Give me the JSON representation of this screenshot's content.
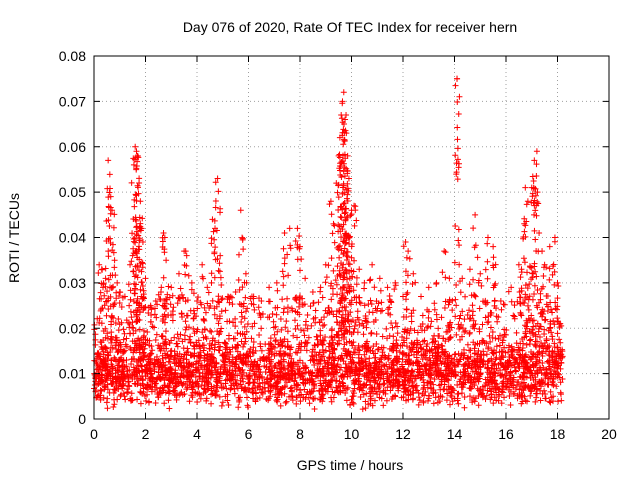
{
  "chart_data": {
    "type": "scatter",
    "title": "Day 076 of 2020, Rate Of TEC Index for receiver hern",
    "xlabel": "GPS time / hours",
    "ylabel": "ROTI / TECUs",
    "xlim": [
      0,
      20
    ],
    "ylim": [
      0,
      0.08
    ],
    "x_ticks": [
      "0",
      "2",
      "4",
      "6",
      "8",
      "10",
      "12",
      "14",
      "16",
      "18",
      "20"
    ],
    "y_ticks": [
      "0",
      "0.01",
      "0.02",
      "0.03",
      "0.04",
      "0.05",
      "0.06",
      "0.07",
      "0.08"
    ],
    "grid": true,
    "marker": "plus",
    "color": "#ff0000",
    "points": [
      [
        0.2,
        0.034
      ],
      [
        0.3,
        0.033
      ],
      [
        0.35,
        0.029
      ],
      [
        0.45,
        0.031
      ],
      [
        0.55,
        0.057
      ],
      [
        0.65,
        0.049
      ],
      [
        0.7,
        0.046
      ],
      [
        0.8,
        0.035
      ],
      [
        0.9,
        0.03
      ],
      [
        1.0,
        0.028
      ],
      [
        1.2,
        0.027
      ],
      [
        1.4,
        0.034
      ],
      [
        1.5,
        0.036
      ],
      [
        1.55,
        0.056
      ],
      [
        1.6,
        0.06
      ],
      [
        1.65,
        0.059
      ],
      [
        1.7,
        0.058
      ],
      [
        1.75,
        0.052
      ],
      [
        1.8,
        0.048
      ],
      [
        1.85,
        0.042
      ],
      [
        1.9,
        0.039
      ],
      [
        2.0,
        0.031
      ],
      [
        2.2,
        0.025
      ],
      [
        2.4,
        0.026
      ],
      [
        2.6,
        0.028
      ],
      [
        2.7,
        0.041
      ],
      [
        2.75,
        0.04
      ],
      [
        2.8,
        0.035
      ],
      [
        3.0,
        0.029
      ],
      [
        3.3,
        0.032
      ],
      [
        3.5,
        0.037
      ],
      [
        3.6,
        0.036
      ],
      [
        3.8,
        0.03
      ],
      [
        4.0,
        0.026
      ],
      [
        4.2,
        0.034
      ],
      [
        4.4,
        0.029
      ],
      [
        4.6,
        0.044
      ],
      [
        4.7,
        0.042
      ],
      [
        4.8,
        0.053
      ],
      [
        4.9,
        0.036
      ],
      [
        5.2,
        0.027
      ],
      [
        5.5,
        0.028
      ],
      [
        5.7,
        0.046
      ],
      [
        5.9,
        0.032
      ],
      [
        6.2,
        0.027
      ],
      [
        6.5,
        0.026
      ],
      [
        6.8,
        0.029
      ],
      [
        7.1,
        0.03
      ],
      [
        7.4,
        0.041
      ],
      [
        7.6,
        0.042
      ],
      [
        7.9,
        0.042
      ],
      [
        8.0,
        0.038
      ],
      [
        8.2,
        0.031
      ],
      [
        8.5,
        0.028
      ],
      [
        8.8,
        0.029
      ],
      [
        9.0,
        0.034
      ],
      [
        9.2,
        0.048
      ],
      [
        9.3,
        0.043
      ],
      [
        9.5,
        0.058
      ],
      [
        9.55,
        0.062
      ],
      [
        9.6,
        0.067
      ],
      [
        9.65,
        0.07
      ],
      [
        9.7,
        0.072
      ],
      [
        9.75,
        0.066
      ],
      [
        9.8,
        0.063
      ],
      [
        9.85,
        0.058
      ],
      [
        9.9,
        0.053
      ],
      [
        10.0,
        0.046
      ],
      [
        10.1,
        0.047
      ],
      [
        10.3,
        0.033
      ],
      [
        10.5,
        0.03
      ],
      [
        10.8,
        0.034
      ],
      [
        11.1,
        0.031
      ],
      [
        11.4,
        0.029
      ],
      [
        11.7,
        0.03
      ],
      [
        12.0,
        0.027
      ],
      [
        12.1,
        0.039
      ],
      [
        12.2,
        0.037
      ],
      [
        12.4,
        0.032
      ],
      [
        12.7,
        0.027
      ],
      [
        13.0,
        0.029
      ],
      [
        13.3,
        0.03
      ],
      [
        13.6,
        0.037
      ],
      [
        13.8,
        0.031
      ],
      [
        14.1,
        0.075
      ],
      [
        14.3,
        0.031
      ],
      [
        14.6,
        0.033
      ],
      [
        14.8,
        0.045
      ],
      [
        15.0,
        0.032
      ],
      [
        15.3,
        0.04
      ],
      [
        15.5,
        0.038
      ],
      [
        15.8,
        0.026
      ],
      [
        16.2,
        0.029
      ],
      [
        16.5,
        0.034
      ],
      [
        16.6,
        0.033
      ],
      [
        16.75,
        0.051
      ],
      [
        16.85,
        0.048
      ],
      [
        17.0,
        0.051
      ],
      [
        17.1,
        0.057
      ],
      [
        17.2,
        0.059
      ],
      [
        17.4,
        0.037
      ],
      [
        17.5,
        0.034
      ],
      [
        17.7,
        0.038
      ],
      [
        17.9,
        0.04
      ],
      [
        18.0,
        0.03
      ]
    ],
    "dense_band": {
      "x_range": [
        0,
        18.2
      ],
      "y_range": [
        0.002,
        0.032
      ],
      "typical": 0.01
    }
  }
}
